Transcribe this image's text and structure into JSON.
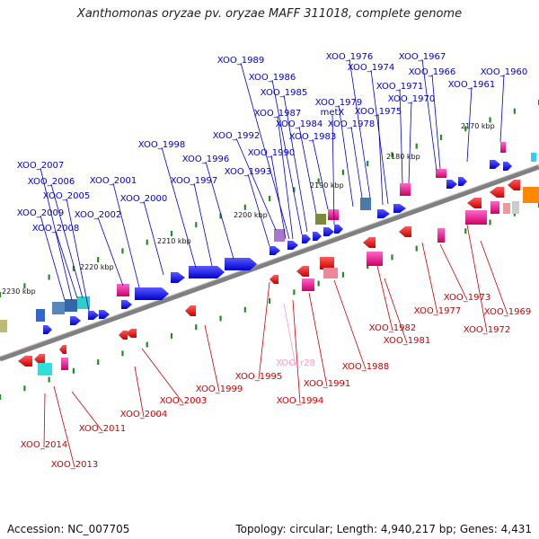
{
  "title": "Xanthomonas oryzae pv. oryzae MAFF 311018, complete genome",
  "footer": {
    "accession": "Accession: NC_007705",
    "topology": "Topology: circular; Length: 4,940,217 bp; Genes: 4,431"
  },
  "colors": {
    "plus_label": "#0000cc",
    "minus_label": "#cc0000",
    "rna_label": "#ff99cc",
    "axis": "#808080",
    "tick": "#228b22"
  },
  "ticks": [
    "2170 kbp",
    "2180 kbp",
    "2190 kbp",
    "2200 kbp",
    "2210 kbp",
    "2220 kbp",
    "2230 kbp"
  ],
  "plus_labels": [
    "XOO_1960",
    "XOO_1961",
    "XOO_1966",
    "XOO_1967",
    "XOO_1970",
    "XOO_1971",
    "XOO_1974",
    "XOO_1975",
    "XOO_1976",
    "XOO_1978",
    "XOO_1979",
    "metX",
    "XOO_1983",
    "XOO_1984",
    "XOO_1985",
    "XOO_1986",
    "XOO_1987",
    "XOO_1989",
    "XOO_1990",
    "XOO_1992",
    "XOO_1993",
    "XOO_1996",
    "XOO_1997",
    "XOO_1998",
    "XOO_2000",
    "XOO_2001",
    "XOO_2002",
    "XOO_2005",
    "XOO_2006",
    "XOO_2007",
    "XOO_2008",
    "XOO_2009"
  ],
  "minus_labels": [
    "XOO_1969",
    "XOO_1972",
    "XOO_1973",
    "XOO_1977",
    "XOO_1981",
    "XOO_1982",
    "XOO_1988",
    "XOO_1991",
    "XOO_1994",
    "XOO_1995",
    "XOO_1999",
    "XOO_2003",
    "XOO_2004",
    "XOO_2011",
    "XOO_2013",
    "XOO_2014"
  ],
  "rna_labels": [
    "XOO_r28"
  ]
}
